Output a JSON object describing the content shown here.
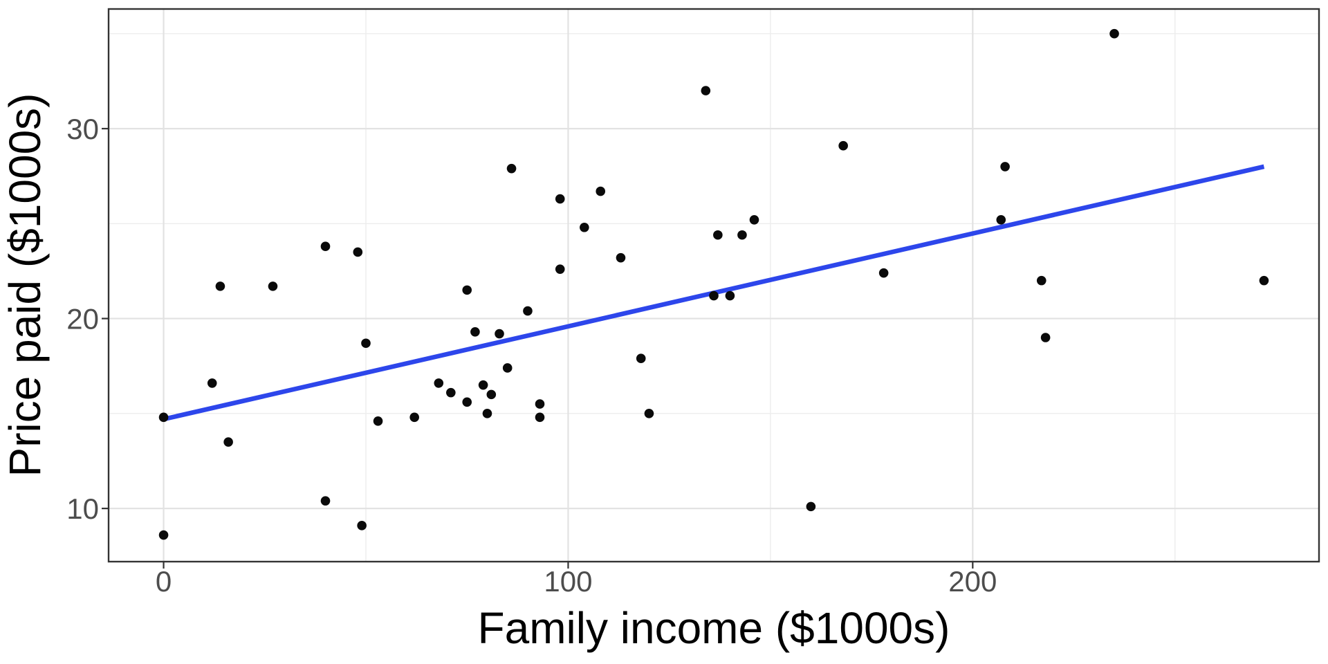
{
  "chart_data": {
    "type": "scatter",
    "title": "",
    "xlabel": "Family income ($1000s)",
    "ylabel": "Price paid ($1000s)",
    "xlim": [
      -13.6,
      285.6
    ],
    "ylim": [
      7.2,
      36.3
    ],
    "x_ticks": [
      0,
      100,
      200
    ],
    "x_tick_labels": [
      "0",
      "100",
      "200"
    ],
    "x_minor_ticks": [
      50,
      150,
      250
    ],
    "y_ticks": [
      10,
      20,
      30
    ],
    "y_tick_labels": [
      "10",
      "20",
      "30"
    ],
    "y_minor_ticks": [
      15,
      25,
      35
    ],
    "grid": "major+minor",
    "legend": "none",
    "points": [
      [
        0,
        8.6
      ],
      [
        0,
        14.8
      ],
      [
        12,
        16.6
      ],
      [
        14,
        21.7
      ],
      [
        16,
        13.5
      ],
      [
        27,
        21.7
      ],
      [
        40,
        10.4
      ],
      [
        40,
        23.8
      ],
      [
        48,
        23.5
      ],
      [
        49,
        9.1
      ],
      [
        50,
        18.7
      ],
      [
        53,
        14.6
      ],
      [
        62,
        14.8
      ],
      [
        68,
        16.6
      ],
      [
        71,
        16.1
      ],
      [
        75,
        15.6
      ],
      [
        75,
        21.5
      ],
      [
        77,
        19.3
      ],
      [
        79,
        16.5
      ],
      [
        80,
        15.0
      ],
      [
        81,
        16.0
      ],
      [
        83,
        19.2
      ],
      [
        85,
        17.4
      ],
      [
        86,
        27.9
      ],
      [
        90,
        20.4
      ],
      [
        93,
        14.8
      ],
      [
        93,
        15.5
      ],
      [
        98,
        22.6
      ],
      [
        98,
        26.3
      ],
      [
        104,
        24.8
      ],
      [
        108,
        26.7
      ],
      [
        113,
        23.2
      ],
      [
        118,
        17.9
      ],
      [
        120,
        15.0
      ],
      [
        134,
        32.0
      ],
      [
        136,
        21.2
      ],
      [
        137,
        24.4
      ],
      [
        140,
        21.2
      ],
      [
        143,
        24.4
      ],
      [
        146,
        25.2
      ],
      [
        160,
        10.1
      ],
      [
        168,
        29.1
      ],
      [
        178,
        22.4
      ],
      [
        207,
        25.2
      ],
      [
        208,
        28.0
      ],
      [
        217,
        22.0
      ],
      [
        218,
        19.0
      ],
      [
        235,
        35.0
      ],
      [
        272,
        22.0
      ]
    ],
    "trend_line": {
      "x1": 0,
      "y1": 14.7,
      "x2": 272,
      "y2": 28.0
    },
    "colors": {
      "points": "#0a0a0a",
      "trend": "#2d46eb",
      "grid_major": "#e2e2e2",
      "grid_minor": "#ededed",
      "border": "#333333",
      "tick_mark": "#333333",
      "tick_text": "#4d4d4d",
      "title_text": "#000000",
      "background": "#ffffff"
    }
  }
}
